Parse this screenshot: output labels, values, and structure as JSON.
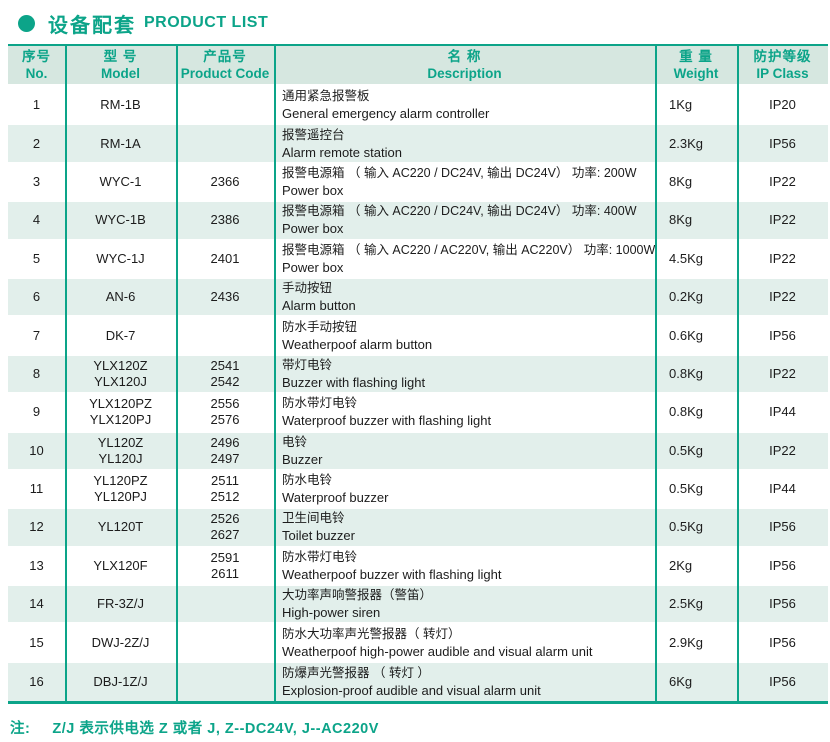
{
  "page": {
    "title_zh": "设备配套",
    "title_en": "PRODUCT LIST",
    "accent_color": "#0ca489",
    "note_label": "注:",
    "note_text": "Z/J 表示供电选 Z 或者 J, Z--DC24V, J--AC220V"
  },
  "table": {
    "headers": [
      {
        "zh": "序号",
        "en": "No."
      },
      {
        "zh": "型  号",
        "en": "Model"
      },
      {
        "zh": "产品号",
        "en": "Product Code"
      },
      {
        "zh": "名  称",
        "en": "Description"
      },
      {
        "zh": "重  量",
        "en": "Weight"
      },
      {
        "zh": "防护等级",
        "en": "IP Class"
      }
    ],
    "rows": [
      {
        "no": "1",
        "model": "RM-1B",
        "code": "",
        "desc_zh": "通用紧急报警板",
        "desc_en": "General emergency alarm controller",
        "weight": "1Kg",
        "ip": "IP20"
      },
      {
        "no": "2",
        "model": "RM-1A",
        "code": "",
        "desc_zh": "报警遥控台",
        "desc_en": "Alarm remote station",
        "weight": "2.3Kg",
        "ip": "IP56"
      },
      {
        "no": "3",
        "model": "WYC-1",
        "code": "2366",
        "desc_zh": "报警电源箱 （ 输入 AC220 / DC24V, 输出 DC24V） 功率:   200W",
        "desc_en": "Power box",
        "weight": "8Kg",
        "ip": "IP22"
      },
      {
        "no": "4",
        "model": "WYC-1B",
        "code": "2386",
        "desc_zh": "报警电源箱 （ 输入 AC220 / DC24V, 输出 DC24V） 功率:   400W",
        "desc_en": "Power box",
        "weight": "8Kg",
        "ip": "IP22"
      },
      {
        "no": "5",
        "model": "WYC-1J",
        "code": "2401",
        "desc_zh": "报警电源箱 （ 输入 AC220 / AC220V, 输出 AC220V） 功率:  1000W",
        "desc_en": "Power box",
        "weight": "4.5Kg",
        "ip": "IP22"
      },
      {
        "no": "6",
        "model": "AN-6",
        "code": "2436",
        "desc_zh": "手动按钮",
        "desc_en": "Alarm button",
        "weight": "0.2Kg",
        "ip": "IP22"
      },
      {
        "no": "7",
        "model": "DK-7",
        "code": "",
        "desc_zh": "防水手动按钮",
        "desc_en": "Weatherpoof alarm button",
        "weight": "0.6Kg",
        "ip": "IP56"
      },
      {
        "no": "8",
        "model": "YLX120Z\nYLX120J",
        "code": "2541\n2542",
        "desc_zh": "带灯电铃",
        "desc_en": "Buzzer with flashing light",
        "weight": "0.8Kg",
        "ip": "IP22"
      },
      {
        "no": "9",
        "model": "YLX120PZ\nYLX120PJ",
        "code": "2556\n2576",
        "desc_zh": "防水带灯电铃",
        "desc_en": "Waterproof buzzer with flashing light",
        "weight": "0.8Kg",
        "ip": "IP44"
      },
      {
        "no": "10",
        "model": "YL120Z\nYL120J",
        "code": "2496\n2497",
        "desc_zh": "电铃",
        "desc_en": "Buzzer",
        "weight": "0.5Kg",
        "ip": "IP22"
      },
      {
        "no": "11",
        "model": "YL120PZ\nYL120PJ",
        "code": "2511\n2512",
        "desc_zh": "防水电铃",
        "desc_en": "Waterproof buzzer",
        "weight": "0.5Kg",
        "ip": "IP44"
      },
      {
        "no": "12",
        "model": "YL120T",
        "code": "2526\n2627",
        "desc_zh": "卫生间电铃",
        "desc_en": "Toilet  buzzer",
        "weight": "0.5Kg",
        "ip": "IP56"
      },
      {
        "no": "13",
        "model": "YLX120F",
        "code": "2591\n2611",
        "desc_zh": "防水带灯电铃",
        "desc_en": "Weatherpoof buzzer with flashing light",
        "weight": "2Kg",
        "ip": "IP56"
      },
      {
        "no": "14",
        "model": "FR-3Z/J",
        "code": "",
        "desc_zh": "大功率声响警报器（警笛）",
        "desc_en": "High-power siren",
        "weight": "2.5Kg",
        "ip": "IP56"
      },
      {
        "no": "15",
        "model": "DWJ-2Z/J",
        "code": "",
        "desc_zh": "防水大功率声光警报器（ 转灯）",
        "desc_en": "Weatherpoof high-power audible and visual alarm unit",
        "weight": "2.9Kg",
        "ip": "IP56"
      },
      {
        "no": "16",
        "model": "DBJ-1Z/J",
        "code": "",
        "desc_zh": "防爆声光警报器 （ 转灯 ）",
        "desc_en": "Explosion-proof audible and visual alarm unit",
        "weight": "6Kg",
        "ip": "IP56"
      }
    ]
  }
}
